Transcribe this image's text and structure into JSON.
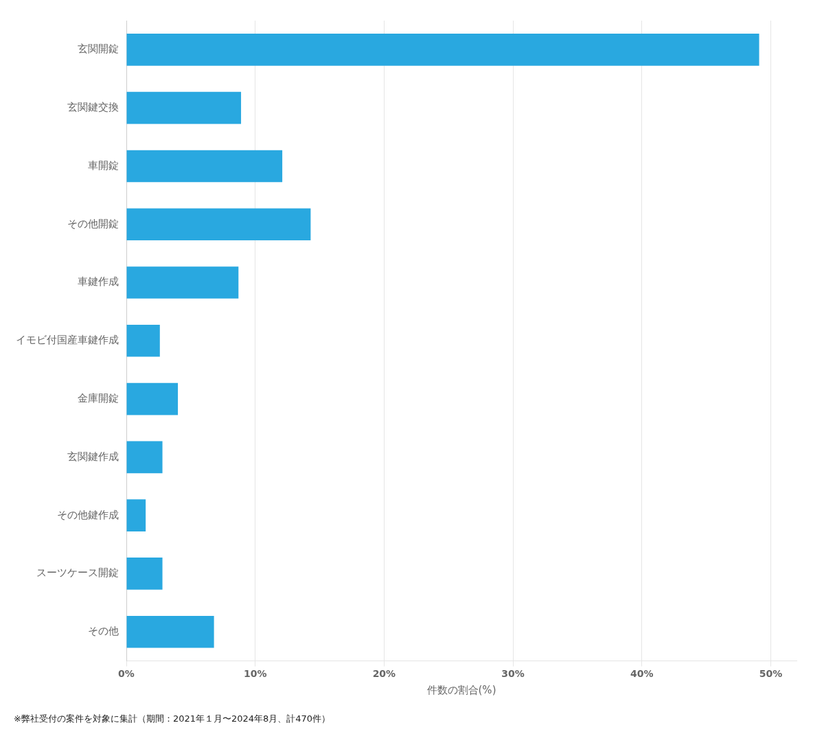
{
  "chart_data": {
    "type": "bar",
    "orientation": "horizontal",
    "categories": [
      "玄関開錠",
      "玄関鍵交換",
      "車開錠",
      "その他開錠",
      "車鍵作成",
      "イモビ付国産車鍵作成",
      "金庫開錠",
      "玄関鍵作成",
      "その他鍵作成",
      "スーツケース開錠",
      "その他"
    ],
    "values": [
      49.1,
      8.9,
      12.1,
      14.3,
      8.7,
      2.6,
      4.0,
      2.8,
      1.5,
      2.8,
      6.8
    ],
    "color": "#29a8e0",
    "xlabel": "件数の割合(%)",
    "xlim": [
      0,
      52
    ],
    "xticks": [
      {
        "value": 0,
        "label": "0%"
      },
      {
        "value": 10,
        "label": "10%"
      },
      {
        "value": 20,
        "label": "20%"
      },
      {
        "value": 30,
        "label": "30%"
      },
      {
        "value": 40,
        "label": "40%"
      },
      {
        "value": 50,
        "label": "50%"
      }
    ],
    "grid": true,
    "footnote": "※弊社受付の案件を対象に集計（期間：2021年１月〜2024年8月、計470件）"
  }
}
